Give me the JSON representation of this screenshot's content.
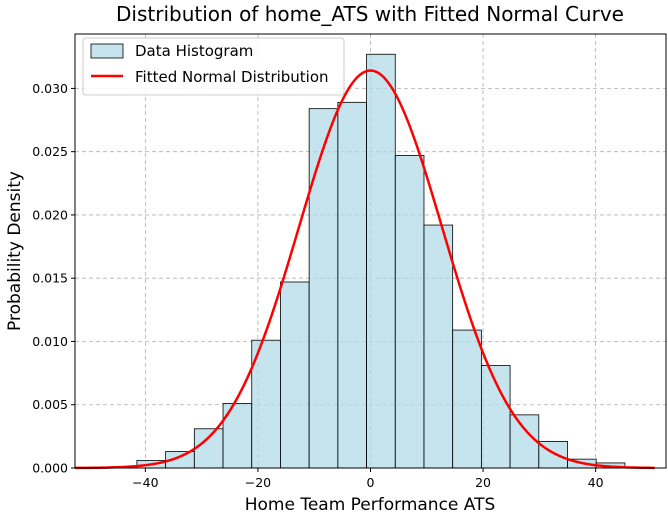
{
  "chart_data": {
    "type": "bar",
    "title": "Distribution of home_ATS with Fitted Normal Curve",
    "xlabel": "Home Team Performance ATS",
    "ylabel": "Probability Density",
    "xlim": [
      -52.5,
      52.5
    ],
    "ylim": [
      0,
      0.0343
    ],
    "xticks": [
      -40,
      -20,
      0,
      20,
      40
    ],
    "xtick_labels": [
      "−40",
      "−20",
      "0",
      "20",
      "40"
    ],
    "yticks": [
      0.0,
      0.005,
      0.01,
      0.015,
      0.02,
      0.025,
      0.03
    ],
    "ytick_labels": [
      "0.000",
      "0.005",
      "0.010",
      "0.015",
      "0.020",
      "0.025",
      "0.030"
    ],
    "grid": true,
    "legend_position": "top-left",
    "histogram": {
      "name": "Data Histogram",
      "bin_edges": [
        -41.5,
        -36.4,
        -31.3,
        -26.2,
        -21.1,
        -16.0,
        -10.9,
        -5.8,
        -0.7,
        4.4,
        9.5,
        14.6,
        19.7,
        24.8,
        29.9,
        35.0,
        40.1,
        45.2
      ],
      "values": [
        0.0006,
        0.0013,
        0.0031,
        0.0051,
        0.0101,
        0.0147,
        0.0284,
        0.0289,
        0.0327,
        0.0247,
        0.0192,
        0.0109,
        0.0081,
        0.0042,
        0.0021,
        0.0007,
        0.0004
      ],
      "color": "#add8e6",
      "alpha": 0.7,
      "edgecolor": "#000000"
    },
    "fitted_curve": {
      "name": "Fitted Normal Distribution",
      "type": "line",
      "mean": 0.0,
      "std": 12.7,
      "x_range": [
        -52.5,
        50.5
      ],
      "color": "#ff0000"
    }
  }
}
